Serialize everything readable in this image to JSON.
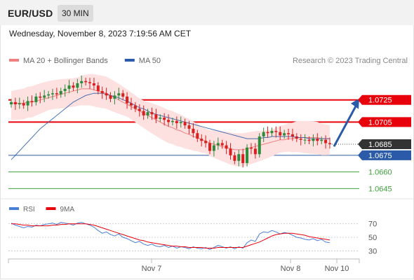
{
  "header": {
    "pair": "EUR/USD",
    "timeframe": "30 MIN"
  },
  "datetime": "Wednesday, November 8, 2023 7:19:56 AM CET",
  "colors": {
    "resistance": "#e8000b",
    "support_main": "#2a5aa8",
    "support_secondary": "#40a040",
    "ma20": "#f08080",
    "bollinger_fill": "#fde0e0",
    "ma50": "#2a5aa8",
    "candle_up": "#2e8b3c",
    "candle_down": "#d92020",
    "rsi": "#4a7fd8",
    "rsi_ma": "#e8000b",
    "current_label": "#333333",
    "arrow": "#2a5aa8"
  },
  "chart_data": [
    {
      "type": "line",
      "legend": [
        {
          "name": "MA 20 + Bollinger Bands",
          "color": "#f08080"
        },
        {
          "name": "MA 50",
          "color": "#2a5aa8"
        }
      ],
      "source_note": "Research © 2023 Trading Central",
      "x_ticks": [
        "Nov 7",
        "Nov 8",
        "Nov 10"
      ],
      "ylim": [
        1.0637,
        1.0752
      ],
      "current_price": "1.0685",
      "levels": [
        {
          "value": 1.0725,
          "label": "1.0725",
          "kind": "resistance"
        },
        {
          "value": 1.0705,
          "label": "1.0705",
          "kind": "resistance"
        },
        {
          "value": 1.0675,
          "label": "1.0675",
          "kind": "support_main"
        },
        {
          "value": 1.066,
          "label": "1.0660",
          "kind": "support_secondary"
        },
        {
          "value": 1.0645,
          "label": "1.0645",
          "kind": "support_secondary"
        }
      ],
      "projection": {
        "from": 1.0683,
        "to": 1.0725
      },
      "closes": [
        1.0723,
        1.0721,
        1.0722,
        1.072,
        1.0724,
        1.0723,
        1.0728,
        1.0727,
        1.0729,
        1.073,
        1.0731,
        1.073,
        1.0733,
        1.0735,
        1.0738,
        1.0736,
        1.074,
        1.0742,
        1.0741,
        1.074,
        1.0738,
        1.0733,
        1.0731,
        1.0729,
        1.0726,
        1.0729,
        1.0731,
        1.0728,
        1.0722,
        1.072,
        1.0717,
        1.0715,
        1.0711,
        1.0714,
        1.0712,
        1.0708,
        1.0709,
        1.0707,
        1.0705,
        1.0706,
        1.0704,
        1.0705,
        1.0702,
        1.0699,
        1.0695,
        1.069,
        1.0688,
        1.0686,
        1.0679,
        1.0684,
        1.0686,
        1.0684,
        1.0681,
        1.0675,
        1.067,
        1.0676,
        1.0668,
        1.0682,
        1.0681,
        1.0676,
        1.0692,
        1.0696,
        1.0695,
        1.0697,
        1.0696,
        1.0693,
        1.0695,
        1.0694,
        1.0692,
        1.069,
        1.0689,
        1.0689,
        1.0688,
        1.069,
        1.0688,
        1.0689,
        1.0686,
        1.0685
      ],
      "ma20": [
        1.0722,
        1.0722,
        1.0722,
        1.0722,
        1.0723,
        1.0723,
        1.0724,
        1.0725,
        1.0726,
        1.0727,
        1.0728,
        1.0729,
        1.073,
        1.0731,
        1.0732,
        1.0733,
        1.0734,
        1.0735,
        1.0735,
        1.0735,
        1.0734,
        1.0733,
        1.0732,
        1.0731,
        1.0729,
        1.0727,
        1.0725,
        1.0723,
        1.0721,
        1.0719,
        1.0717,
        1.0715,
        1.0713,
        1.0711,
        1.0709,
        1.0707,
        1.0705,
        1.0703,
        1.0701,
        1.07,
        1.0698,
        1.0697,
        1.0695,
        1.0694,
        1.0692,
        1.0691,
        1.0689,
        1.0688,
        1.0686,
        1.0685,
        1.0684,
        1.0683,
        1.0682,
        1.0681,
        1.068,
        1.068,
        1.068,
        1.0681,
        1.0682,
        1.0683,
        1.0684,
        1.0685,
        1.0686,
        1.0687,
        1.0688,
        1.0689,
        1.0689,
        1.069,
        1.069,
        1.0691,
        1.0691,
        1.0691,
        1.0691,
        1.0691,
        1.0691,
        1.069,
        1.069,
        1.069
      ],
      "ma50": [
        1.0671,
        1.0675,
        1.0679,
        1.0683,
        1.0687,
        1.0691,
        1.0695,
        1.0699,
        1.0702,
        1.0705,
        1.0708,
        1.0711,
        1.0714,
        1.0717,
        1.072,
        1.0723,
        1.0725,
        1.0727,
        1.0729,
        1.073,
        1.0731,
        1.0731,
        1.0731,
        1.073,
        1.0729,
        1.0728,
        1.0727,
        1.0725,
        1.0724,
        1.0722,
        1.072,
        1.0718,
        1.0717,
        1.0715,
        1.0713,
        1.0712,
        1.0711,
        1.071,
        1.0709,
        1.0708,
        1.0707,
        1.0706,
        1.0705,
        1.0704,
        1.0703,
        1.0702,
        1.0701,
        1.07,
        1.0699,
        1.0698,
        1.0697,
        1.0696,
        1.0695,
        1.0694,
        1.0693,
        1.0692,
        1.0691,
        1.069,
        1.069,
        1.069,
        1.069,
        1.0691,
        1.0691,
        1.0692,
        1.0692,
        1.0692,
        1.0692,
        1.0692,
        1.0692,
        1.0691,
        1.0691,
        1.0691,
        1.069,
        1.069,
        1.069,
        1.069,
        1.069,
        1.069
      ]
    },
    {
      "type": "line",
      "legend": [
        {
          "name": "RSI",
          "color": "#4a7fd8"
        },
        {
          "name": "9MA",
          "color": "#e8000b"
        }
      ],
      "y_ticks": [
        "70",
        "50",
        "30"
      ],
      "ylim": [
        20,
        80
      ],
      "rsi": [
        71,
        68,
        66,
        64,
        66,
        65,
        68,
        67,
        69,
        70,
        71,
        69,
        72,
        71,
        70,
        68,
        71,
        72,
        70,
        68,
        65,
        60,
        56,
        58,
        54,
        52,
        55,
        50,
        48,
        45,
        42,
        44,
        40,
        38,
        40,
        37,
        36,
        38,
        35,
        37,
        34,
        36,
        35,
        33,
        36,
        34,
        33,
        35,
        32,
        35,
        38,
        36,
        34,
        36,
        33,
        36,
        34,
        42,
        46,
        44,
        55,
        58,
        57,
        60,
        58,
        55,
        57,
        56,
        53,
        50,
        49,
        47,
        46,
        48,
        45,
        47,
        43,
        42
      ],
      "rsi_ma": [
        70,
        70,
        69,
        68,
        68,
        67,
        67,
        67,
        67,
        67,
        68,
        68,
        69,
        69,
        70,
        70,
        70,
        70,
        70,
        69,
        68,
        66,
        64,
        62,
        60,
        58,
        56,
        54,
        52,
        50,
        48,
        46,
        45,
        43,
        42,
        41,
        40,
        39,
        38,
        37,
        37,
        36,
        36,
        35,
        35,
        35,
        35,
        34,
        34,
        34,
        35,
        35,
        35,
        35,
        35,
        35,
        35,
        37,
        39,
        41,
        43,
        46,
        49,
        52,
        54,
        55,
        56,
        56,
        56,
        55,
        54,
        53,
        51,
        50,
        49,
        48,
        47,
        46
      ]
    }
  ]
}
